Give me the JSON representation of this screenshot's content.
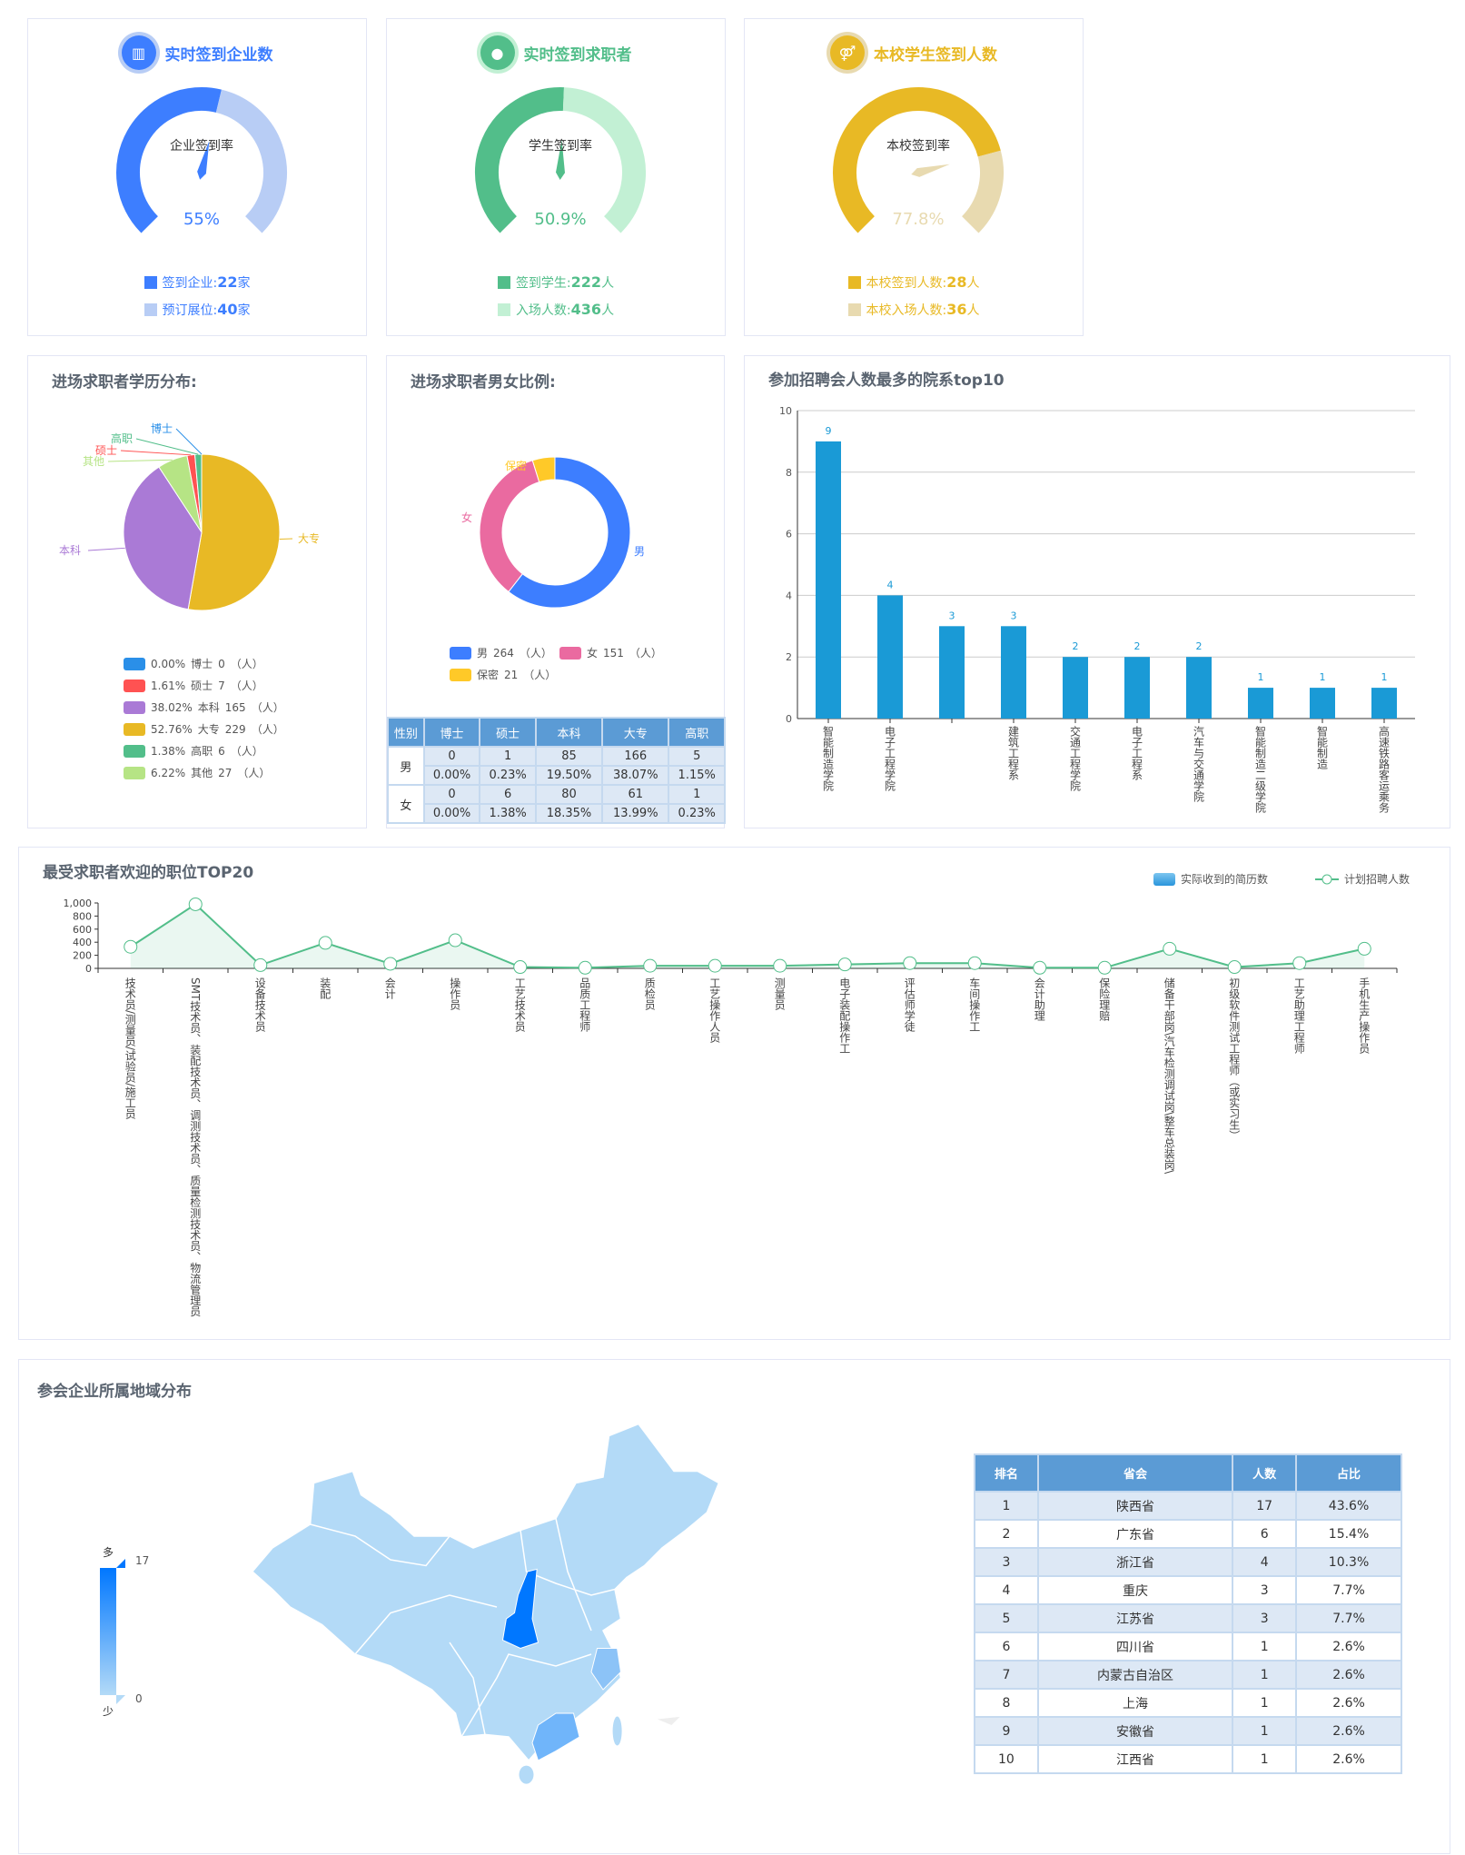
{
  "gauges": [
    {
      "title": "实时签到企业数",
      "icon": "building-icon",
      "inner_label": "企业签到率",
      "value_text": "55%",
      "percent": 55,
      "legend": [
        {
          "label": "签到企业:",
          "value": "22",
          "unit": "家"
        },
        {
          "label": "预订展位:",
          "value": "40",
          "unit": "家"
        }
      ],
      "color": "#3d7eff",
      "light": "#b8cdf5"
    },
    {
      "title": "实时签到求职者",
      "icon": "user-icon",
      "inner_label": "学生签到率",
      "value_text": "50.9%",
      "percent": 50.9,
      "legend": [
        {
          "label": "签到学生:",
          "value": "222",
          "unit": "人"
        },
        {
          "label": "入场人数:",
          "value": "436",
          "unit": "人"
        }
      ],
      "color": "#52be8a",
      "light": "#c2f0d4"
    },
    {
      "title": "本校学生签到人数",
      "icon": "people-icon",
      "inner_label": "本校签到率",
      "value_text": "77.8%",
      "percent": 77.8,
      "legend": [
        {
          "label": "本校签到人数:",
          "value": "28",
          "unit": "人"
        },
        {
          "label": "本校入场人数:",
          "value": "36",
          "unit": "人"
        }
      ],
      "color": "#e8b925",
      "light": "#e8dab0"
    }
  ],
  "education": {
    "title": "进场求职者学历分布:"
  },
  "gender": {
    "title": "进场求职者男女比例:",
    "table": {
      "headers": [
        "性别",
        "博士",
        "硕士",
        "本科",
        "大专",
        "高职"
      ],
      "rows": [
        {
          "sex": "男",
          "counts": [
            "0",
            "1",
            "85",
            "166",
            "5"
          ],
          "pcts": [
            "0.00%",
            "0.23%",
            "19.50%",
            "38.07%",
            "1.15%"
          ]
        },
        {
          "sex": "女",
          "counts": [
            "0",
            "6",
            "80",
            "61",
            "1"
          ],
          "pcts": [
            "0.00%",
            "1.38%",
            "18.35%",
            "13.99%",
            "0.23%"
          ]
        }
      ]
    }
  },
  "geo": {
    "title": "参会企业所属地域分布",
    "visual_map": {
      "max": "17",
      "min": "0",
      "high_label": "多",
      "low_label": "少",
      "high_color": "#0077ff",
      "low_color": "#b3daf7"
    },
    "highlight": {
      "陕西省": "#0077ff",
      "广东省": "#70b5fa",
      "浙江省": "#8cc3f7"
    },
    "table": {
      "headers": [
        "排名",
        "省会",
        "人数",
        "占比"
      ],
      "rows": [
        [
          "1",
          "陕西省",
          "17",
          "43.6%"
        ],
        [
          "2",
          "广东省",
          "6",
          "15.4%"
        ],
        [
          "3",
          "浙江省",
          "4",
          "10.3%"
        ],
        [
          "4",
          "重庆",
          "3",
          "7.7%"
        ],
        [
          "5",
          "江苏省",
          "3",
          "7.7%"
        ],
        [
          "6",
          "四川省",
          "1",
          "2.6%"
        ],
        [
          "7",
          "内蒙古自治区",
          "1",
          "2.6%"
        ],
        [
          "8",
          "上海",
          "1",
          "2.6%"
        ],
        [
          "9",
          "安徽省",
          "1",
          "2.6%"
        ],
        [
          "10",
          "江西省",
          "1",
          "2.6%"
        ]
      ]
    }
  },
  "chart_data": [
    {
      "type": "pie",
      "title": "进场求职者学历分布:",
      "slices": [
        {
          "name": "大专",
          "value": 229,
          "pct": "52.76%",
          "color": "#e8b925"
        },
        {
          "name": "本科",
          "value": 165,
          "pct": "38.02%",
          "color": "#aa7ad6"
        },
        {
          "name": "其他",
          "value": 27,
          "pct": "6.22%",
          "color": "#b6e485"
        },
        {
          "name": "硕士",
          "value": 7,
          "pct": "1.61%",
          "color": "#ff5252"
        },
        {
          "name": "高职",
          "value": 6,
          "pct": "1.38%",
          "color": "#52be8a"
        },
        {
          "name": "博士",
          "value": 0,
          "pct": "0.00%",
          "color": "#2a8fe8"
        }
      ],
      "legend_order": [
        "博士",
        "硕士",
        "本科",
        "大专",
        "高职",
        "其他"
      ],
      "legend_unit": "（人）"
    },
    {
      "type": "pie",
      "subtype": "donut",
      "title": "进场求职者男女比例:",
      "slices": [
        {
          "name": "男",
          "value": 264,
          "color": "#3d7eff"
        },
        {
          "name": "女",
          "value": 151,
          "color": "#ea6aa0"
        },
        {
          "name": "保密",
          "value": 21,
          "color": "#ffc928"
        }
      ],
      "legend_unit": "（人）"
    },
    {
      "type": "bar",
      "title": "参加招聘会人数最多的院系top10",
      "categories": [
        "智能制造学院",
        "电子工程学院",
        "",
        "建筑工程系",
        "交通工程学院",
        "电子工程系",
        "汽车与交通学院",
        "智能制造二级学院",
        "智能制造",
        "高速铁路客运乘务"
      ],
      "values": [
        9,
        4,
        3,
        3,
        2,
        2,
        2,
        1,
        1,
        1
      ],
      "ylim": [
        0,
        10
      ],
      "yticks": [
        "0",
        "2",
        "4",
        "6",
        "8",
        "10"
      ],
      "grid": true,
      "color": "#1a9ad6"
    },
    {
      "type": "line",
      "title": "最受求职者欢迎的职位TOP20",
      "categories": [
        "技术员/测量员/试验员/施工员",
        "SMT技术员、装配技术员、调测技术员、质量检测技术员、物流管理员",
        "设备技术员",
        "装配",
        "会计",
        "操作员",
        "工艺技术员",
        "品质工程师",
        "质检员",
        "工艺操作人员",
        "测量员",
        "电子装配操作工",
        "评估师学徒",
        "车间操作工",
        "会计助理",
        "保险理赔",
        "储备干部岗\\汽车检测调试岗\\整车总装岗\\",
        "初级软件测试工程师（或实习生）",
        "工艺助理工程师",
        "手机生产操作员"
      ],
      "series": [
        {
          "name": "实际收到的简历数",
          "type": "bar",
          "color": "#3aa6e0"
        },
        {
          "name": "计划招聘人数",
          "type": "line",
          "color": "#52be8a",
          "values": [
            330,
            980,
            50,
            390,
            70,
            430,
            20,
            10,
            40,
            40,
            40,
            60,
            80,
            80,
            10,
            10,
            300,
            20,
            80,
            300
          ]
        }
      ],
      "ylim": [
        0,
        1000
      ],
      "yticks": [
        "0",
        "200",
        "400",
        "600",
        "800",
        "1,000"
      ],
      "legend": "top-right"
    }
  ]
}
